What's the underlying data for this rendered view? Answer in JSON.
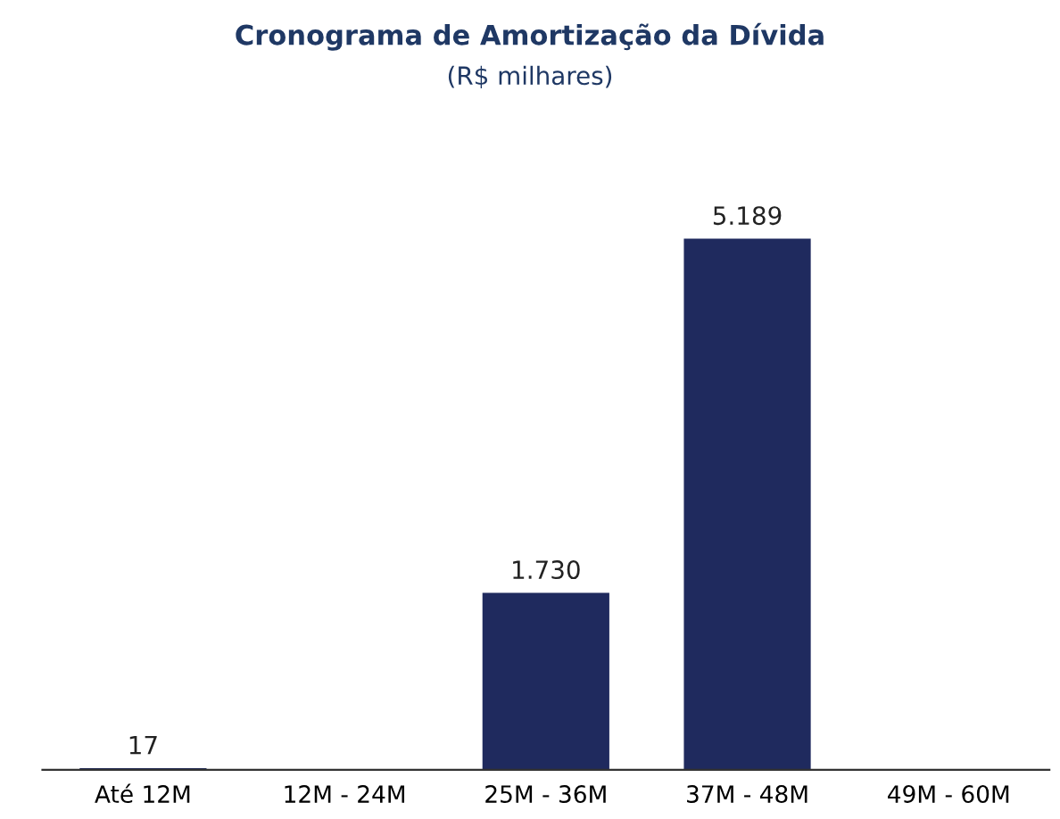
{
  "chart_data": {
    "type": "bar",
    "title": "Cronograma de Amortização da Dívida",
    "subtitle": "(R$ milhares)",
    "categories": [
      "Até 12M",
      "12M - 24M",
      "25M - 36M",
      "37M - 48M",
      "49M - 60M"
    ],
    "values": [
      17,
      null,
      1730,
      5189,
      null
    ],
    "value_labels": [
      "17",
      null,
      "1.730",
      "5.189",
      null
    ],
    "color": "#1f2a5e",
    "grid": false,
    "legend": false,
    "tick_labels": "x"
  }
}
